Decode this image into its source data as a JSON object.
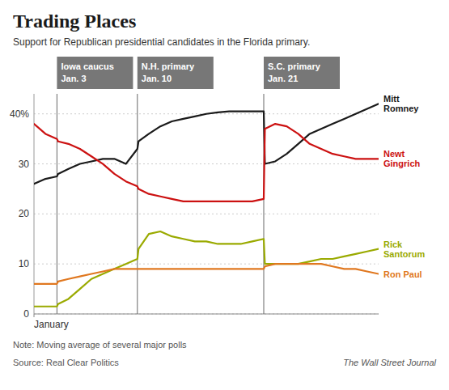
{
  "chart_data": {
    "type": "line",
    "title": "Trading Places",
    "subtitle": "Support for Republican presidential candidates in the Florida primary.",
    "note": "Note: Moving average of several major polls",
    "source": "Source: Real Clear Politics",
    "credit": "The Wall Street Journal",
    "x": [
      1,
      2,
      3,
      3.1,
      4,
      5,
      6,
      7,
      8,
      9,
      10,
      10.1,
      11,
      12,
      13,
      14,
      15,
      16,
      17,
      18,
      19,
      20,
      21,
      21.1,
      22,
      23,
      24,
      25,
      26,
      27,
      28,
      29,
      30,
      31
    ],
    "xlim": [
      1,
      31
    ],
    "xticks": [
      {
        "value": 1,
        "label": "January"
      }
    ],
    "ylim": [
      0,
      44
    ],
    "yticks": [
      0,
      10,
      20,
      30,
      {
        "value": 40,
        "label": "40%"
      }
    ],
    "grid": true,
    "annotations": [
      {
        "x": 3,
        "lines": [
          "Iowa caucus",
          "Jan. 3"
        ]
      },
      {
        "x": 10,
        "lines": [
          "N.H. primary",
          "Jan. 10"
        ]
      },
      {
        "x": 21,
        "lines": [
          "S.C. primary",
          "Jan. 21"
        ]
      }
    ],
    "series": [
      {
        "name": "Mitt\nRomney",
        "color": "#1a1a1a",
        "values": [
          26,
          27,
          27.5,
          28,
          29,
          30,
          30.5,
          31,
          31,
          30,
          33,
          34.5,
          36,
          37.5,
          38.5,
          39,
          39.5,
          40,
          40.3,
          40.5,
          40.5,
          40.5,
          40.5,
          30,
          30.5,
          32,
          34,
          36,
          37,
          38,
          39,
          40,
          41,
          42
        ]
      },
      {
        "name": "Newt\nGingrich",
        "color": "#cc1111",
        "values": [
          38,
          36,
          35,
          34.5,
          34,
          33,
          31.5,
          30,
          28,
          26.5,
          25.5,
          25,
          24,
          23.5,
          23,
          22.5,
          22.5,
          22.5,
          22.5,
          22.5,
          22.5,
          22.5,
          23,
          37,
          38,
          37.5,
          36,
          34,
          33,
          32,
          31.5,
          31,
          31,
          31
        ]
      },
      {
        "name": "Rick\nSantorum",
        "color": "#9aaa00",
        "values": [
          1.5,
          1.5,
          1.5,
          2,
          3,
          5,
          7,
          8,
          9,
          10,
          11,
          13,
          16,
          16.5,
          15.5,
          15,
          14.5,
          14.5,
          14,
          14,
          14,
          14.5,
          15,
          10,
          10,
          10,
          10,
          10.5,
          11,
          11,
          11.5,
          12,
          12.5,
          13
        ]
      },
      {
        "name": "Ron Paul",
        "color": "#e07820",
        "values": [
          6,
          6,
          6,
          6.5,
          7,
          7.5,
          8,
          8.5,
          9,
          9,
          9,
          9,
          9,
          9,
          9,
          9,
          9,
          9,
          9,
          9,
          9,
          9,
          9,
          9.5,
          10,
          10,
          10,
          10,
          10,
          9.5,
          9,
          9,
          8.5,
          8
        ]
      }
    ]
  }
}
